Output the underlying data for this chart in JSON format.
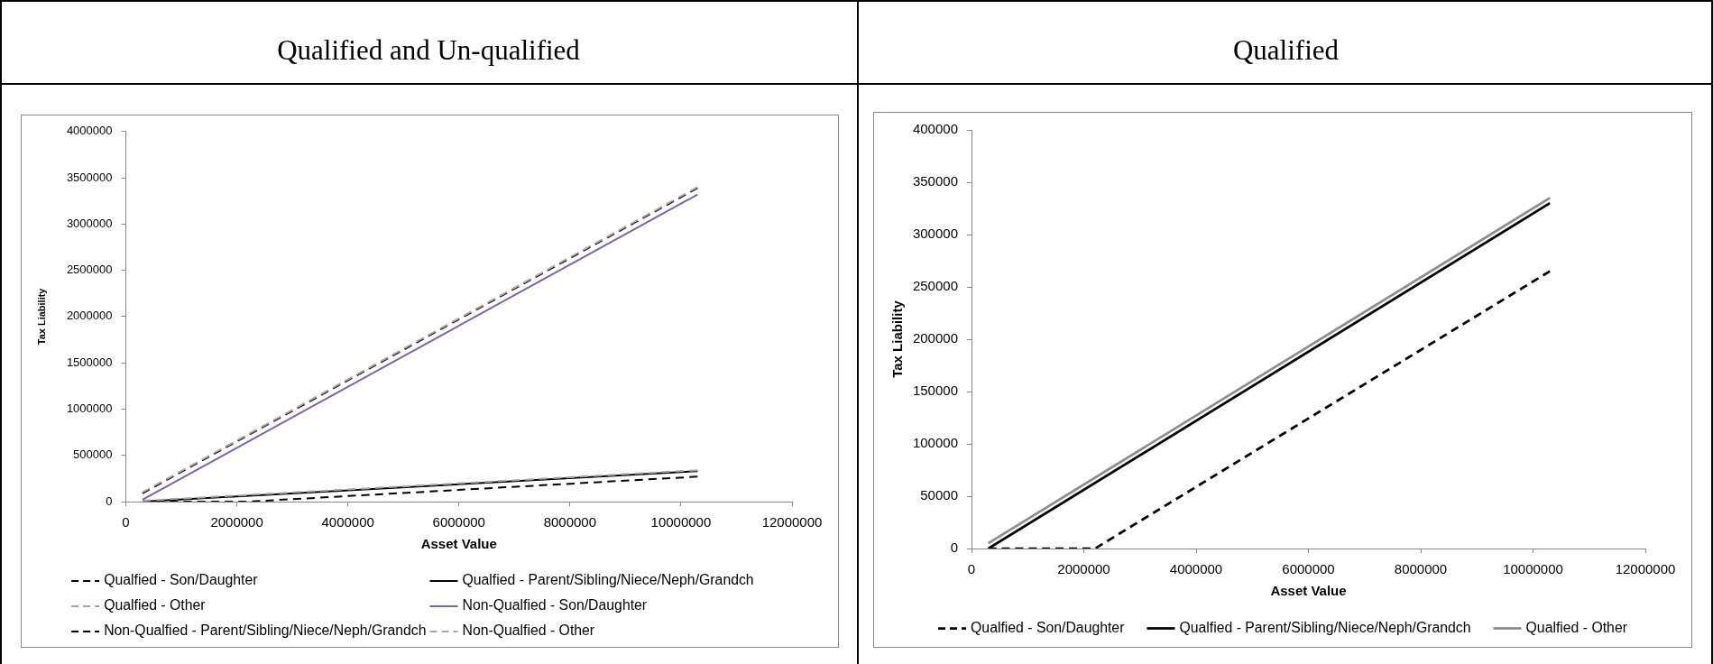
{
  "chart_data": [
    {
      "type": "line",
      "title": "Qualified and Un-qualified",
      "xlabel": "Asset Value",
      "ylabel": "Tax Liability",
      "xlim": [
        0,
        12000000
      ],
      "xticks": [
        0,
        2000000,
        4000000,
        6000000,
        8000000,
        10000000,
        12000000
      ],
      "ylim": [
        0,
        4000000
      ],
      "yticks": [
        0,
        500000,
        1000000,
        1500000,
        2000000,
        2500000,
        3000000,
        3500000,
        4000000
      ],
      "legend": "bottom",
      "series": [
        {
          "name": "Qualfied - Son/Daughter",
          "color": "#000000",
          "line_style": "dashed",
          "x": [
            300000,
            2200000,
            10300000
          ],
          "values": [
            0,
            0,
            270000
          ]
        },
        {
          "name": "Qualfied - Parent/Sibling/Niece/Neph/Grandch",
          "color": "#000000",
          "line_style": "solid",
          "x": [
            300000,
            10300000
          ],
          "values": [
            0,
            330000
          ]
        },
        {
          "name": "Qualfied - Other",
          "color": "#a6a6a6",
          "line_style": "dashed",
          "x": [
            300000,
            10300000
          ],
          "values": [
            10000,
            340000
          ]
        },
        {
          "name": "Non-Qualfied - Son/Daughter",
          "color": "#8064a2",
          "line_style": "solid",
          "x": [
            300000,
            10300000
          ],
          "values": [
            20000,
            3320000
          ]
        },
        {
          "name": "Non-Qualfied - Parent/Sibling/Niece/Neph/Grandch",
          "color": "#000000",
          "line_style": "dashed",
          "x": [
            300000,
            10300000
          ],
          "values": [
            90000,
            3390000
          ]
        },
        {
          "name": "Non-Qualfied - Other",
          "color": "#a6a6a6",
          "line_style": "dashed",
          "x": [
            300000,
            10300000
          ],
          "values": [
            100000,
            3400000
          ]
        }
      ]
    },
    {
      "type": "line",
      "title": "Qualified",
      "xlabel": "Asset Value",
      "ylabel": "Tax Liability",
      "xlim": [
        0,
        12000000
      ],
      "xticks": [
        0,
        2000000,
        4000000,
        6000000,
        8000000,
        10000000,
        12000000
      ],
      "ylim": [
        0,
        400000
      ],
      "yticks": [
        0,
        50000,
        100000,
        150000,
        200000,
        250000,
        300000,
        350000,
        400000
      ],
      "legend": "bottom",
      "series": [
        {
          "name": "Qualfied - Son/Daughter",
          "color": "#000000",
          "line_style": "dashed",
          "x": [
            300000,
            2200000,
            10300000
          ],
          "values": [
            0,
            0,
            265000
          ]
        },
        {
          "name": "Qualfied - Parent/Sibling/Niece/Neph/Grandch",
          "color": "#000000",
          "line_style": "solid",
          "x": [
            300000,
            10300000
          ],
          "values": [
            0,
            330000
          ]
        },
        {
          "name": "Qualfied - Other",
          "color": "#8c8c8c",
          "line_style": "solid",
          "x": [
            300000,
            10300000
          ],
          "values": [
            5000,
            335000
          ]
        }
      ]
    }
  ]
}
